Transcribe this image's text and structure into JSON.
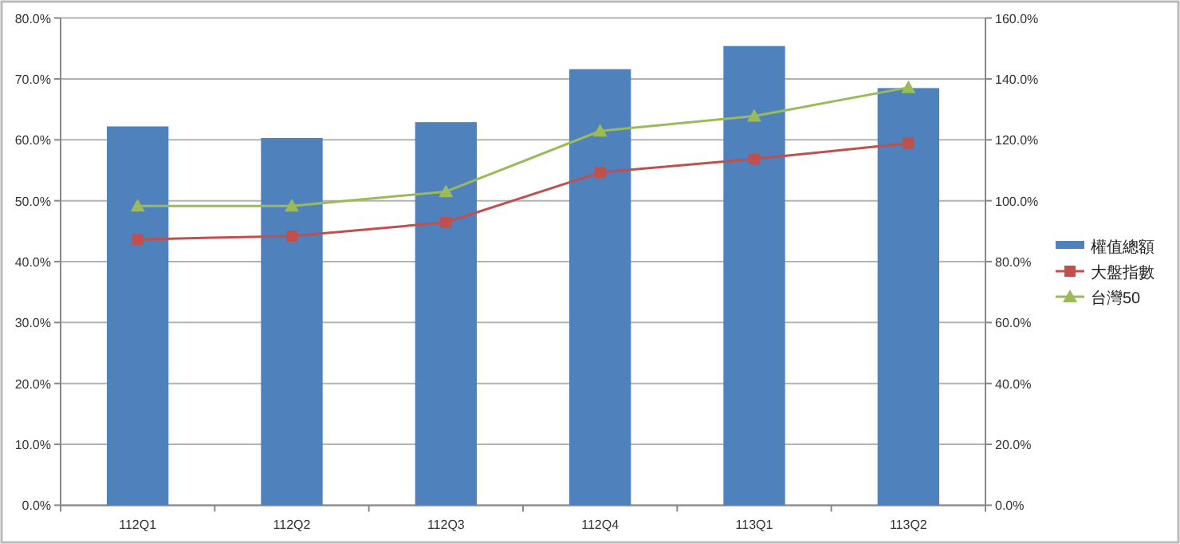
{
  "chart_data": {
    "type": "bar",
    "categories": [
      "112Q1",
      "112Q2",
      "112Q3",
      "112Q4",
      "113Q1",
      "113Q2"
    ],
    "series": [
      {
        "name": "權值總額",
        "color": "#4f81bd",
        "values": [
          62.2,
          60.3,
          62.9,
          71.6,
          75.4,
          68.5
        ]
      },
      {
        "name": "大盤指數",
        "type": "line",
        "axis": "y2",
        "marker": "square",
        "color": "#c0504d",
        "values": [
          87.3,
          88.4,
          92.9,
          109.3,
          113.7,
          118.9
        ]
      },
      {
        "name": "台灣50",
        "type": "line",
        "axis": "y2",
        "marker": "triangle",
        "color": "#9bbb59",
        "values": [
          98.3,
          98.3,
          103.0,
          122.9,
          127.8,
          137.2
        ]
      }
    ],
    "ylim": [
      0,
      80
    ],
    "yticks": [
      {
        "value": 0,
        "label": "0.0%"
      },
      {
        "value": 10,
        "label": "10.0%"
      },
      {
        "value": 20,
        "label": "20.0%"
      },
      {
        "value": 30,
        "label": "30.0%"
      },
      {
        "value": 40,
        "label": "40.0%"
      },
      {
        "value": 50,
        "label": "50.0%"
      },
      {
        "value": 60,
        "label": "60.0%"
      },
      {
        "value": 70,
        "label": "70.0%"
      },
      {
        "value": 80,
        "label": "80.0%"
      }
    ],
    "y2lim": [
      0,
      160
    ],
    "y2ticks": [
      {
        "value": 0,
        "label": "0.0%"
      },
      {
        "value": 20,
        "label": "20.0%"
      },
      {
        "value": 40,
        "label": "40.0%"
      },
      {
        "value": 60,
        "label": "60.0%"
      },
      {
        "value": 80,
        "label": "80.0%"
      },
      {
        "value": 100,
        "label": "100.0%"
      },
      {
        "value": 120,
        "label": "120.0%"
      },
      {
        "value": 140,
        "label": "140.0%"
      },
      {
        "value": 160,
        "label": "160.0%"
      }
    ],
    "grid": "y",
    "legend": "right"
  }
}
